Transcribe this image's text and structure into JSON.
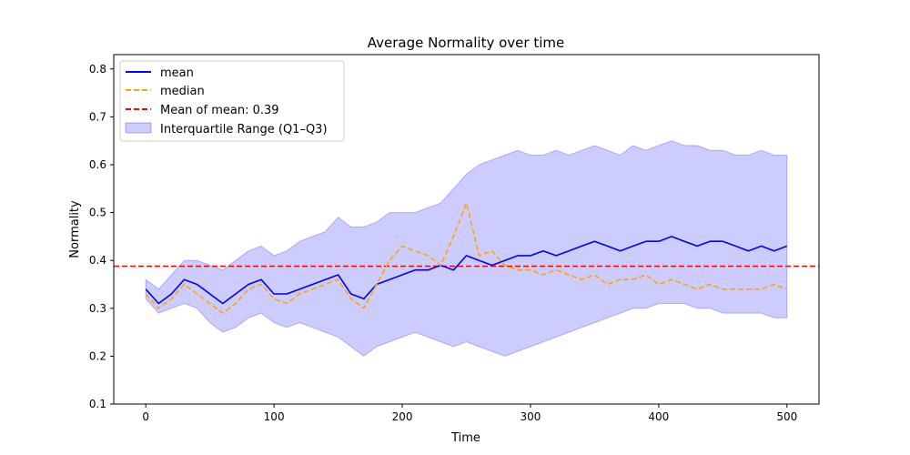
{
  "chart_data": {
    "type": "line",
    "title": "Average Normality over time",
    "xlabel": "Time",
    "ylabel": "Normality",
    "xlim": [
      -25,
      525
    ],
    "ylim": [
      0.1,
      0.83
    ],
    "xticks": [
      0,
      100,
      200,
      300,
      400,
      500
    ],
    "yticks": [
      0.1,
      0.2,
      0.3,
      0.4,
      0.5,
      0.6,
      0.7,
      0.8
    ],
    "grid": false,
    "legend_position": "top-left",
    "x": [
      0,
      10,
      20,
      30,
      40,
      50,
      60,
      70,
      80,
      90,
      100,
      110,
      120,
      130,
      140,
      150,
      160,
      170,
      180,
      190,
      200,
      210,
      220,
      230,
      240,
      250,
      260,
      270,
      280,
      290,
      300,
      310,
      320,
      330,
      340,
      350,
      360,
      370,
      380,
      390,
      400,
      410,
      420,
      430,
      440,
      450,
      460,
      470,
      480,
      490,
      500
    ],
    "series": [
      {
        "name": "mean",
        "style": "solid",
        "color": "#0000ff",
        "values": [
          0.34,
          0.31,
          0.33,
          0.36,
          0.35,
          0.33,
          0.31,
          0.33,
          0.35,
          0.36,
          0.33,
          0.33,
          0.34,
          0.35,
          0.36,
          0.37,
          0.33,
          0.32,
          0.35,
          0.36,
          0.37,
          0.38,
          0.38,
          0.39,
          0.38,
          0.41,
          0.4,
          0.39,
          0.4,
          0.41,
          0.41,
          0.42,
          0.41,
          0.42,
          0.43,
          0.44,
          0.43,
          0.42,
          0.43,
          0.44,
          0.44,
          0.45,
          0.44,
          0.43,
          0.44,
          0.44,
          0.43,
          0.42,
          0.43,
          0.42,
          0.43
        ]
      },
      {
        "name": "median",
        "style": "dashed",
        "color": "#ffa500",
        "values": [
          0.33,
          0.3,
          0.32,
          0.35,
          0.33,
          0.31,
          0.29,
          0.31,
          0.34,
          0.35,
          0.32,
          0.31,
          0.33,
          0.34,
          0.35,
          0.36,
          0.32,
          0.3,
          0.35,
          0.4,
          0.43,
          0.42,
          0.41,
          0.39,
          0.45,
          0.52,
          0.41,
          0.42,
          0.39,
          0.38,
          0.38,
          0.37,
          0.38,
          0.37,
          0.36,
          0.37,
          0.35,
          0.36,
          0.36,
          0.37,
          0.35,
          0.36,
          0.35,
          0.34,
          0.35,
          0.34,
          0.34,
          0.34,
          0.34,
          0.35,
          0.34
        ]
      }
    ],
    "iqr": {
      "name": "Interquartile Range (Q1–Q3)",
      "color": "#0000ff",
      "q1": [
        0.32,
        0.29,
        0.3,
        0.31,
        0.3,
        0.27,
        0.25,
        0.26,
        0.28,
        0.29,
        0.27,
        0.26,
        0.27,
        0.26,
        0.25,
        0.24,
        0.22,
        0.2,
        0.22,
        0.23,
        0.24,
        0.25,
        0.24,
        0.23,
        0.22,
        0.23,
        0.22,
        0.21,
        0.2,
        0.21,
        0.22,
        0.23,
        0.24,
        0.25,
        0.26,
        0.27,
        0.28,
        0.29,
        0.3,
        0.3,
        0.31,
        0.31,
        0.31,
        0.3,
        0.3,
        0.29,
        0.29,
        0.29,
        0.29,
        0.28,
        0.28
      ],
      "q3": [
        0.36,
        0.34,
        0.37,
        0.4,
        0.4,
        0.39,
        0.38,
        0.4,
        0.42,
        0.43,
        0.41,
        0.42,
        0.44,
        0.45,
        0.46,
        0.49,
        0.47,
        0.47,
        0.48,
        0.5,
        0.5,
        0.5,
        0.51,
        0.52,
        0.55,
        0.58,
        0.6,
        0.61,
        0.62,
        0.63,
        0.62,
        0.62,
        0.63,
        0.62,
        0.63,
        0.64,
        0.63,
        0.62,
        0.64,
        0.63,
        0.64,
        0.65,
        0.64,
        0.64,
        0.63,
        0.63,
        0.62,
        0.62,
        0.63,
        0.62,
        0.62
      ]
    },
    "reference_line": {
      "name": "Mean of mean: 0.39",
      "value": 0.388,
      "style": "dashed",
      "color": "#ff0000"
    }
  }
}
